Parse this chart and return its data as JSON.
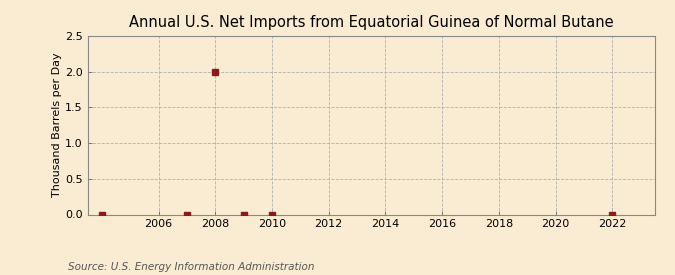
{
  "title": "Annual U.S. Net Imports from Equatorial Guinea of Normal Butane",
  "ylabel": "Thousand Barrels per Day",
  "source": "Source: U.S. Energy Information Administration",
  "background_color": "#faecd2",
  "plot_bg_color": "#faecd2",
  "xmin": 2003.5,
  "xmax": 2023.5,
  "ymin": 0.0,
  "ymax": 2.5,
  "yticks": [
    0.0,
    0.5,
    1.0,
    1.5,
    2.0,
    2.5
  ],
  "xticks": [
    2006,
    2008,
    2010,
    2012,
    2014,
    2016,
    2018,
    2020,
    2022
  ],
  "data_points": [
    {
      "year": 2004,
      "value": 0.0
    },
    {
      "year": 2007,
      "value": 0.0
    },
    {
      "year": 2008,
      "value": 2.0
    },
    {
      "year": 2009,
      "value": 0.0
    },
    {
      "year": 2010,
      "value": 0.0
    },
    {
      "year": 2022,
      "value": 0.0
    }
  ],
  "marker_color": "#8b1a1a",
  "marker_size": 4,
  "grid_color": "#b0b0b0",
  "grid_linestyle": "--",
  "grid_linewidth": 0.6,
  "title_fontsize": 10.5,
  "label_fontsize": 8,
  "tick_fontsize": 8,
  "source_fontsize": 7.5
}
